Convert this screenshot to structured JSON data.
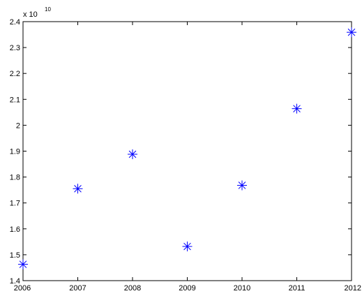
{
  "chart_data": {
    "type": "scatter",
    "title": "",
    "xlabel": "",
    "ylabel": "",
    "exponent_label": {
      "base": "x 10",
      "power": "10"
    },
    "x": [
      2006,
      2007,
      2008,
      2009,
      2010,
      2011,
      2012
    ],
    "values": [
      1.463,
      1.755,
      1.888,
      1.532,
      1.768,
      2.064,
      2.359
    ],
    "xlim": [
      2006,
      2012
    ],
    "ylim": [
      1.4,
      2.4
    ],
    "x_ticks": [
      "2006",
      "2007",
      "2008",
      "2009",
      "2010",
      "2011",
      "2012"
    ],
    "y_ticks": [
      "1.4",
      "1.5",
      "1.6",
      "1.7",
      "1.8",
      "1.9",
      "2",
      "2.1",
      "2.2",
      "2.3",
      "2.4"
    ],
    "y_tick_values": [
      1.4,
      1.5,
      1.6,
      1.7,
      1.8,
      1.9,
      2.0,
      2.1,
      2.2,
      2.3,
      2.4
    ],
    "marker": "asterisk",
    "marker_color": "#0000ff",
    "axis_color": "#000000",
    "grid": false,
    "legend": "none"
  }
}
